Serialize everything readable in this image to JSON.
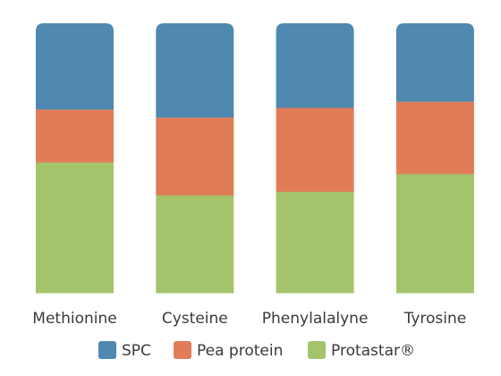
{
  "chart_data": {
    "type": "bar",
    "stacked": true,
    "normalized": true,
    "categories": [
      "Methionine",
      "Cysteine",
      "Phenylalalyne",
      "Tyrosine"
    ],
    "series": [
      {
        "name": "Protastar®",
        "color": "#a4c46c",
        "values": [
          48.5,
          36.3,
          37.6,
          44.2
        ]
      },
      {
        "name": "Pea protein",
        "color": "#e07c58",
        "values": [
          19.5,
          28.7,
          31.0,
          26.7
        ]
      },
      {
        "name": "SPC",
        "color": "#4f88b0",
        "values": [
          32.0,
          35.0,
          31.4,
          29.1
        ]
      }
    ],
    "legend_order": [
      "SPC",
      "Pea protein",
      "Protastar®"
    ],
    "legend_position": "bottom",
    "ylim": [
      0,
      100
    ],
    "axes_visible": false,
    "grid": false
  }
}
